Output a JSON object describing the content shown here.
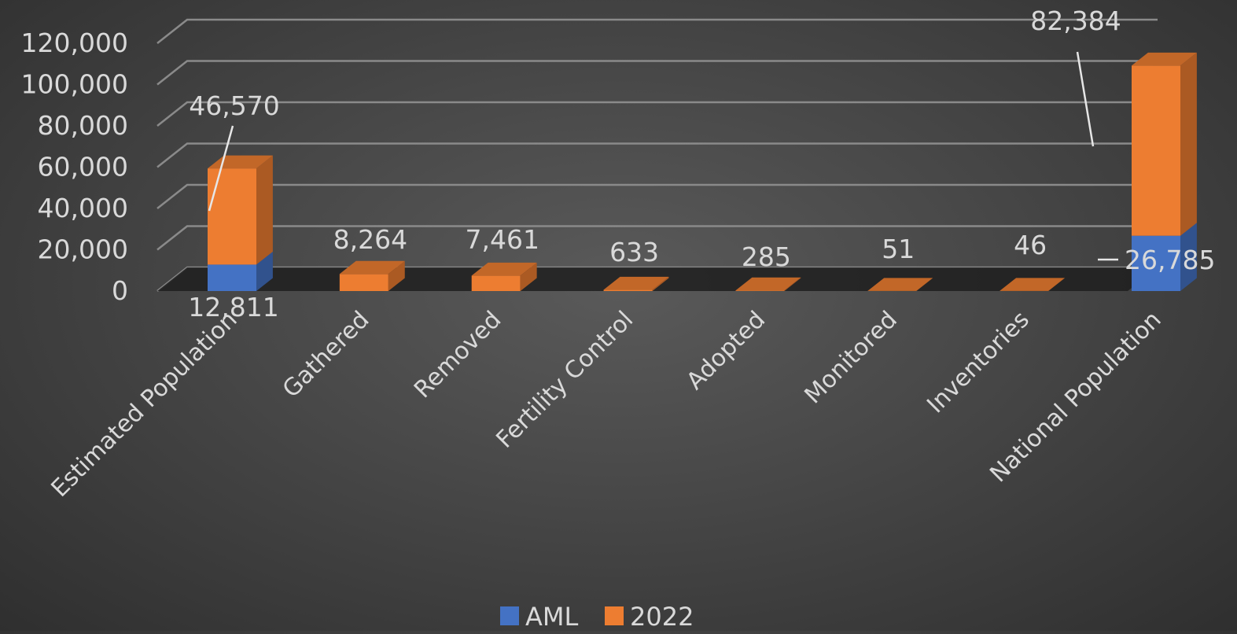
{
  "chart_data": {
    "type": "bar",
    "stacked": true,
    "three_d": true,
    "title": "",
    "xlabel": "",
    "ylabel": "",
    "ylim": [
      0,
      120000
    ],
    "yticks": [
      0,
      20000,
      40000,
      60000,
      80000,
      100000,
      120000
    ],
    "ytick_labels": [
      "0",
      "20,000",
      "40,000",
      "60,000",
      "80,000",
      "100,000",
      "120,000"
    ],
    "grid": true,
    "legend_position": "bottom",
    "categories": [
      "Estimated Population",
      "Gathered",
      "Removed",
      "Fertility Control",
      "Adopted",
      "Monitored",
      "Inventories",
      "National Population"
    ],
    "series": [
      {
        "name": "AML",
        "color": "#4472c4",
        "values": [
          12811,
          null,
          null,
          null,
          null,
          null,
          null,
          26785
        ],
        "labels": [
          "12,811",
          "",
          "",
          "",
          "",
          "",
          "",
          "26,785"
        ]
      },
      {
        "name": "2022",
        "color": "#ed7d31",
        "values": [
          46570,
          8264,
          7461,
          633,
          285,
          51,
          46,
          82384
        ],
        "labels": [
          "46,570",
          "8,264",
          "7,461",
          "633",
          "285",
          "51",
          "46",
          "82,384"
        ]
      }
    ]
  }
}
